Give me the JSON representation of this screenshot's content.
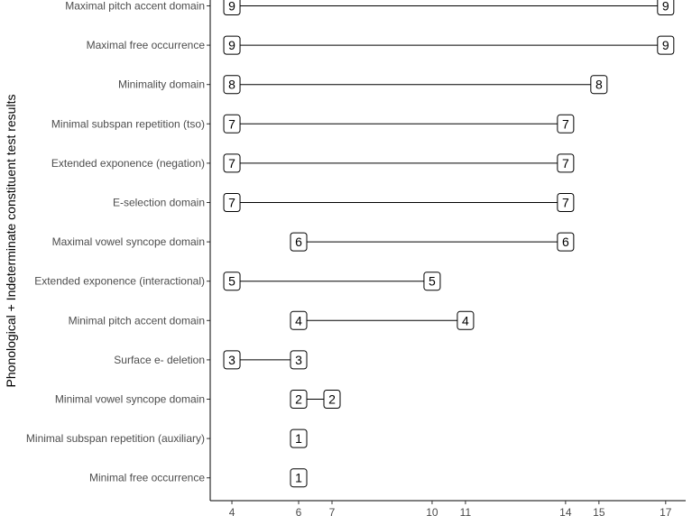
{
  "chart_data": {
    "type": "dumbbell",
    "ylabel": "Phonological + Indeterminate constituent test results",
    "xlabel": "",
    "title": "",
    "x_ticks": [
      4,
      6,
      7,
      10,
      11,
      14,
      15,
      17
    ],
    "xlim": [
      3.35,
      17.6
    ],
    "grid": false,
    "categories": [
      "Maximal pitch accent domain",
      "Maximal free occurrence",
      "Minimality domain",
      "Minimal subspan repetition (tso)",
      "Extended exponence (negation)",
      "E-selection domain",
      "Maximal vowel syncope domain",
      "Extended exponence (interactional)",
      "Minimal pitch accent domain",
      "Surface e- deletion",
      "Minimal vowel syncope domain",
      "Minimal subspan repetition (auxiliary)",
      "Minimal free occurrence"
    ],
    "rows": [
      {
        "name": "Maximal pitch accent domain",
        "start": 4,
        "end": 17,
        "start_label": "9",
        "end_label": "9"
      },
      {
        "name": "Maximal free occurrence",
        "start": 4,
        "end": 17,
        "start_label": "9",
        "end_label": "9"
      },
      {
        "name": "Minimality domain",
        "start": 4,
        "end": 15,
        "start_label": "8",
        "end_label": "8"
      },
      {
        "name": "Minimal subspan repetition (tso)",
        "start": 4,
        "end": 14,
        "start_label": "7",
        "end_label": "7"
      },
      {
        "name": "Extended exponence (negation)",
        "start": 4,
        "end": 14,
        "start_label": "7",
        "end_label": "7"
      },
      {
        "name": "E-selection domain",
        "start": 4,
        "end": 14,
        "start_label": "7",
        "end_label": "7"
      },
      {
        "name": "Maximal vowel syncope domain",
        "start": 6,
        "end": 14,
        "start_label": "6",
        "end_label": "6"
      },
      {
        "name": "Extended exponence (interactional)",
        "start": 4,
        "end": 10,
        "start_label": "5",
        "end_label": "5"
      },
      {
        "name": "Minimal pitch accent domain",
        "start": 6,
        "end": 11,
        "start_label": "4",
        "end_label": "4"
      },
      {
        "name": "Surface e- deletion",
        "start": 4,
        "end": 6,
        "start_label": "3",
        "end_label": "3"
      },
      {
        "name": "Minimal vowel syncope domain",
        "start": 6,
        "end": 7,
        "start_label": "2",
        "end_label": "2"
      },
      {
        "name": "Minimal subspan repetition (auxiliary)",
        "start": 6,
        "end": 6,
        "start_label": "1",
        "end_label": "1"
      },
      {
        "name": "Minimal free occurrence",
        "start": 6,
        "end": 6,
        "start_label": "1",
        "end_label": "1"
      }
    ]
  }
}
